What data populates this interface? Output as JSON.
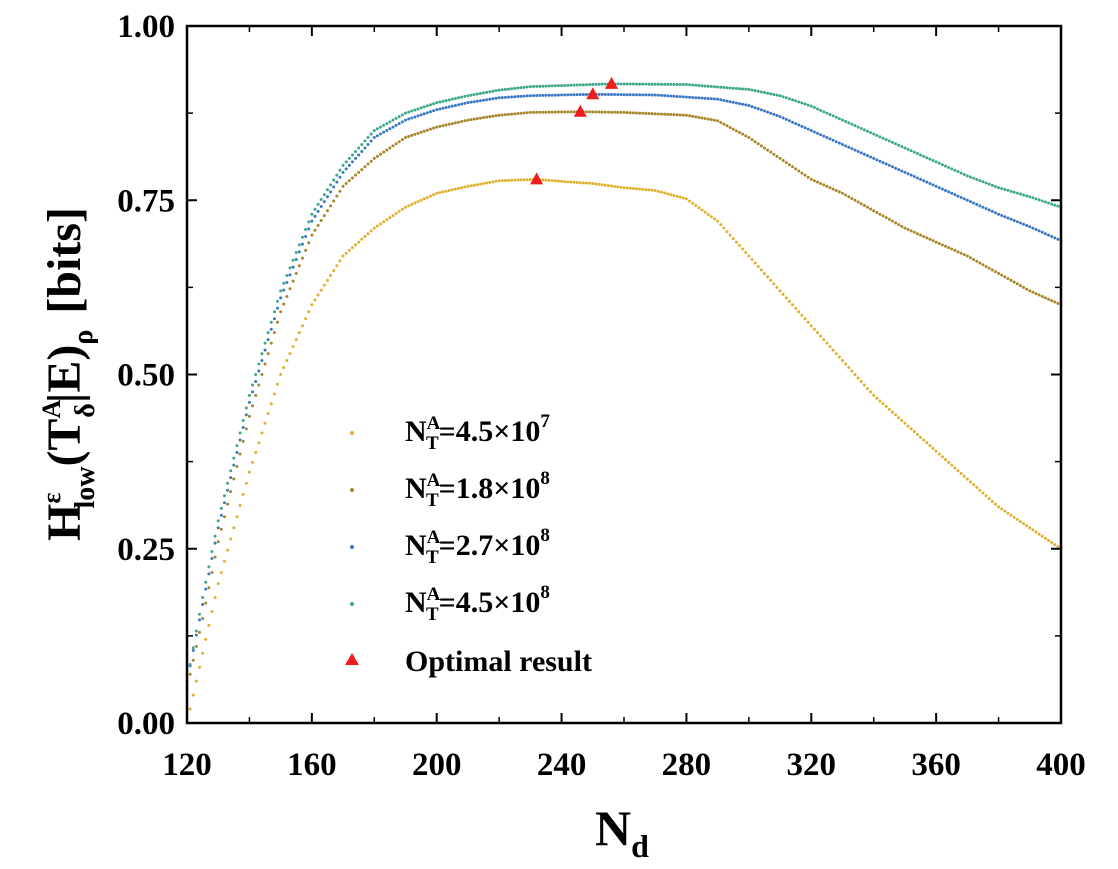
{
  "chart_data": {
    "type": "scatter",
    "xlabel": {
      "main": "N",
      "sub": "d"
    },
    "ylabel": {
      "H": "H",
      "H_sup": "ε",
      "H_sub": "low",
      "open": "(T",
      "T_sup": "A",
      "T_sub": "δ",
      "mid": "|E)",
      "close_sub": "ρ",
      "unit": "[bits]"
    },
    "xlim": [
      120,
      400
    ],
    "ylim": [
      0,
      1
    ],
    "xticks": [
      "120",
      "160",
      "200",
      "240",
      "280",
      "320",
      "360",
      "400"
    ],
    "yticks": [
      "0.00",
      "0.25",
      "0.50",
      "0.75",
      "1.00"
    ],
    "grid": false,
    "legend_position": "lower-center",
    "series": [
      {
        "legend": {
          "N": "N",
          "sup": "A",
          "sub": "T",
          "value": "=4.5×10",
          "exp": "7"
        },
        "color": "#e0b12f",
        "points": [
          [
            121,
            0.02
          ],
          [
            126,
            0.12
          ],
          [
            130,
            0.2
          ],
          [
            140,
            0.36
          ],
          [
            150,
            0.5
          ],
          [
            160,
            0.6
          ],
          [
            170,
            0.67
          ],
          [
            180,
            0.71
          ],
          [
            190,
            0.74
          ],
          [
            200,
            0.76
          ],
          [
            210,
            0.77
          ],
          [
            220,
            0.778
          ],
          [
            232,
            0.78
          ],
          [
            240,
            0.777
          ],
          [
            250,
            0.774
          ],
          [
            260,
            0.768
          ],
          [
            270,
            0.764
          ],
          [
            280,
            0.752
          ],
          [
            290,
            0.72
          ],
          [
            300,
            0.67
          ],
          [
            310,
            0.62
          ],
          [
            320,
            0.57
          ],
          [
            330,
            0.52
          ],
          [
            340,
            0.47
          ],
          [
            350,
            0.43
          ],
          [
            360,
            0.39
          ],
          [
            370,
            0.35
          ],
          [
            380,
            0.31
          ],
          [
            390,
            0.28
          ],
          [
            400,
            0.25
          ]
        ]
      },
      {
        "legend": {
          "N": "N",
          "sup": "A",
          "sub": "T",
          "value": "=1.8×10",
          "exp": "8"
        },
        "color": "#a8862a",
        "points": [
          [
            120,
            0.05
          ],
          [
            125,
            0.15
          ],
          [
            130,
            0.26
          ],
          [
            140,
            0.44
          ],
          [
            150,
            0.59
          ],
          [
            160,
            0.7
          ],
          [
            170,
            0.77
          ],
          [
            180,
            0.81
          ],
          [
            190,
            0.84
          ],
          [
            200,
            0.855
          ],
          [
            210,
            0.865
          ],
          [
            220,
            0.872
          ],
          [
            230,
            0.876
          ],
          [
            246,
            0.877
          ],
          [
            260,
            0.876
          ],
          [
            280,
            0.872
          ],
          [
            290,
            0.864
          ],
          [
            300,
            0.84
          ],
          [
            310,
            0.81
          ],
          [
            320,
            0.78
          ],
          [
            330,
            0.76
          ],
          [
            340,
            0.735
          ],
          [
            350,
            0.71
          ],
          [
            360,
            0.69
          ],
          [
            370,
            0.67
          ],
          [
            380,
            0.645
          ],
          [
            390,
            0.62
          ],
          [
            400,
            0.6
          ]
        ]
      },
      {
        "legend": {
          "N": "N",
          "sup": "A",
          "sub": "T",
          "value": "=2.7×10",
          "exp": "8"
        },
        "color": "#3b78c4",
        "points": [
          [
            120,
            0.06
          ],
          [
            125,
            0.17
          ],
          [
            130,
            0.28
          ],
          [
            140,
            0.46
          ],
          [
            150,
            0.61
          ],
          [
            160,
            0.72
          ],
          [
            170,
            0.79
          ],
          [
            180,
            0.84
          ],
          [
            190,
            0.865
          ],
          [
            200,
            0.88
          ],
          [
            210,
            0.89
          ],
          [
            220,
            0.897
          ],
          [
            230,
            0.9
          ],
          [
            250,
            0.902
          ],
          [
            270,
            0.901
          ],
          [
            290,
            0.895
          ],
          [
            300,
            0.886
          ],
          [
            310,
            0.87
          ],
          [
            320,
            0.85
          ],
          [
            330,
            0.83
          ],
          [
            340,
            0.81
          ],
          [
            350,
            0.79
          ],
          [
            360,
            0.77
          ],
          [
            370,
            0.75
          ],
          [
            380,
            0.73
          ],
          [
            390,
            0.712
          ],
          [
            400,
            0.692
          ]
        ]
      },
      {
        "legend": {
          "N": "N",
          "sup": "A",
          "sub": "T",
          "value": "=4.5×10",
          "exp": "8"
        },
        "color": "#3da88a",
        "points": [
          [
            120,
            0.06
          ],
          [
            125,
            0.18
          ],
          [
            130,
            0.29
          ],
          [
            140,
            0.47
          ],
          [
            150,
            0.62
          ],
          [
            160,
            0.73
          ],
          [
            170,
            0.8
          ],
          [
            180,
            0.85
          ],
          [
            190,
            0.875
          ],
          [
            200,
            0.89
          ],
          [
            210,
            0.9
          ],
          [
            220,
            0.908
          ],
          [
            230,
            0.913
          ],
          [
            256,
            0.917
          ],
          [
            280,
            0.916
          ],
          [
            300,
            0.909
          ],
          [
            310,
            0.9
          ],
          [
            320,
            0.885
          ],
          [
            330,
            0.865
          ],
          [
            340,
            0.845
          ],
          [
            350,
            0.825
          ],
          [
            360,
            0.805
          ],
          [
            370,
            0.785
          ],
          [
            380,
            0.768
          ],
          [
            390,
            0.755
          ],
          [
            400,
            0.74
          ]
        ]
      }
    ],
    "optimal": {
      "legend": "Optimal result",
      "color": "#ee1c1c",
      "points": [
        [
          232,
          0.78
        ],
        [
          246,
          0.877
        ],
        [
          250,
          0.902
        ],
        [
          256,
          0.917
        ]
      ]
    }
  }
}
